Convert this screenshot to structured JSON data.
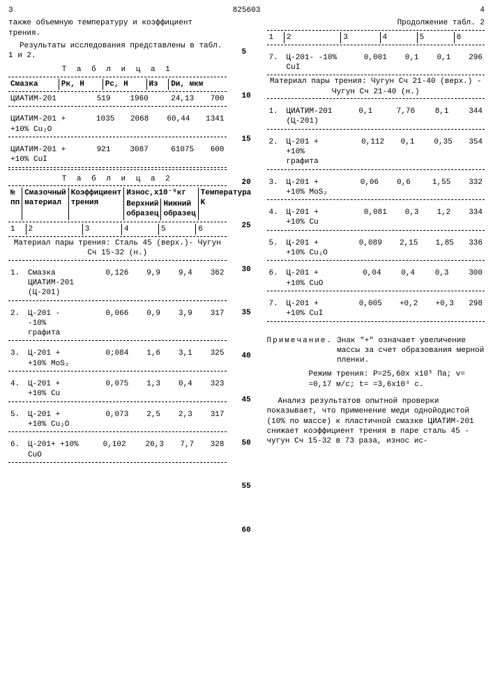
{
  "header": {
    "page_left": "3",
    "doc_number": "825603",
    "page_right": "4"
  },
  "left_col": {
    "intro1": "также объемную температуру и коэффициент трения.",
    "intro2": "Результаты исследования представлены в табл. 1 и 2.",
    "table1_title": "Т а б л и ц а  1",
    "table1_headers": {
      "c1": "Смазка",
      "c2": "Pк, Н",
      "c3": "Pс, Н",
      "c4": "Из",
      "c5": "Dи, мкм"
    },
    "table1_rows": [
      {
        "name": "ЦИАТИМ-201",
        "v1": "519",
        "v2": "1960",
        "v3": "24,13",
        "v4": "700"
      },
      {
        "name": "ЦИАТИМ-201 + +10% Cu₂O",
        "v1": "1035",
        "v2": "2068",
        "v3": "60,44",
        "v4": "1341"
      },
      {
        "name": "ЦИАТИМ-201 + +10% CuI",
        "v1": "921",
        "v2": "3087",
        "v3": "61075",
        "v4": "600"
      }
    ],
    "table2_title": "Т а б л и ц а  2",
    "table2_headers": {
      "h1": "№ пп",
      "h2": "Смазочный материал",
      "h3": "Коэффициент трения",
      "h4": "Износ,x10⁻⁶кг",
      "h4a": "Верхний образец",
      "h4b": "Нижний образец",
      "h5": "Температура K"
    },
    "table2_colnums": {
      "c1": "1",
      "c2": "2",
      "c3": "3",
      "c4": "4",
      "c5": "5",
      "c6": "6"
    },
    "material1": "Материал пары трения: Сталь 45 (верх.)- Чугун Сч 15-32 (н.)",
    "t2rows": [
      {
        "n": "1.",
        "name": "Смазка ЦИАТИМ-201 (Ц-201)",
        "kf": "0,126",
        "up": "9,9",
        "dn": "9,4",
        "t": "362"
      },
      {
        "n": "2.",
        "name": "Ц-201 - -10% графита",
        "kf": "0,066",
        "up": "0,9",
        "dn": "3,9",
        "t": "317"
      },
      {
        "n": "3.",
        "name": "Ц-201 + +10% MoS₂",
        "kf": "0;084",
        "up": "1,6",
        "dn": "3,1",
        "t": "325"
      },
      {
        "n": "4.",
        "name": "Ц-201 + +10% Cu",
        "kf": "0,075",
        "up": "1,3",
        "dn": "0,4",
        "t": "323"
      },
      {
        "n": "5.",
        "name": "Ц-201 + +10% Cu₂O",
        "kf": "0,073",
        "up": "2,5",
        "dn": "2,3",
        "t": "317"
      },
      {
        "n": "6.",
        "name": "Ц-201+ +10% CuO",
        "kf": "0,102",
        "up": "26,3",
        "dn": "7,7",
        "t": "328"
      }
    ]
  },
  "right_col": {
    "cont_title": "Продолжение табл. 2",
    "colnums": {
      "c1": "1",
      "c2": "2",
      "c3": "3",
      "c4": "4",
      "c5": "5",
      "c6": "6"
    },
    "row7": {
      "n": "7.",
      "name": "Ц-201- -10% CuI",
      "kf": "0,001",
      "up": "0,1",
      "dn": "0,1",
      "t": "296"
    },
    "material2": "Материал пары трения: Чугун Сч 21-40 (верх.) - Чугун Сч 21-40 (н.)",
    "t2rows_b": [
      {
        "n": "1.",
        "name": "ЦИАТИМ-201 (Ц-201)",
        "kf": "0,1",
        "up": "7,76",
        "dn": "8,1",
        "t": "344"
      },
      {
        "n": "2.",
        "name": "Ц-201 + +10% графита",
        "kf": "0,112",
        "up": "0,1",
        "dn": "0,35",
        "t": "354"
      },
      {
        "n": "3.",
        "name": "Ц-201 + +10% MoS₂",
        "kf": "0,06",
        "up": "0,6",
        "dn": "1,55",
        "t": "332"
      },
      {
        "n": "4.",
        "name": "Ц-201 + +10% Cu",
        "kf": "0,081",
        "up": "0,3",
        "dn": "1,2",
        "t": "334"
      },
      {
        "n": "5.",
        "name": "Ц-201 + +10% Cu₂O",
        "kf": "0,089",
        "up": "2,15",
        "dn": "1,85",
        "t": "336"
      },
      {
        "n": "6.",
        "name": "Ц-201 + +10% CuO",
        "kf": "0,04",
        "up": "0,4",
        "dn": "0,3",
        "t": "300"
      },
      {
        "n": "7.",
        "name": "Ц-201 + +10% CuI",
        "kf": "0,005",
        "up": "+0,2",
        "dn": "+0,3",
        "t": "298"
      }
    ],
    "note_label": "Примечание.",
    "note_text": "Знак \"+\" означает увеличение массы за счет образования мерной пленки.",
    "regime_label": "Режим трения:",
    "regime_text": "P=25,60x x10⁵ Па; v= =0,17 м/с; t= =3,6x10⁴ с.",
    "analysis": "Анализ результатов опытной проверки показывает, что применение меди однойодистой (10% по массе) к пластичной смазке ЦИАТИМ-201 снижает коэффициент трения в паре сталь 45 - чугун Сч 15-32 в 73 раза, износ ис-"
  },
  "line_numbers": [
    "5",
    "10",
    "15",
    "20",
    "25",
    "30",
    "35",
    "40",
    "45",
    "50",
    "55",
    "60"
  ]
}
